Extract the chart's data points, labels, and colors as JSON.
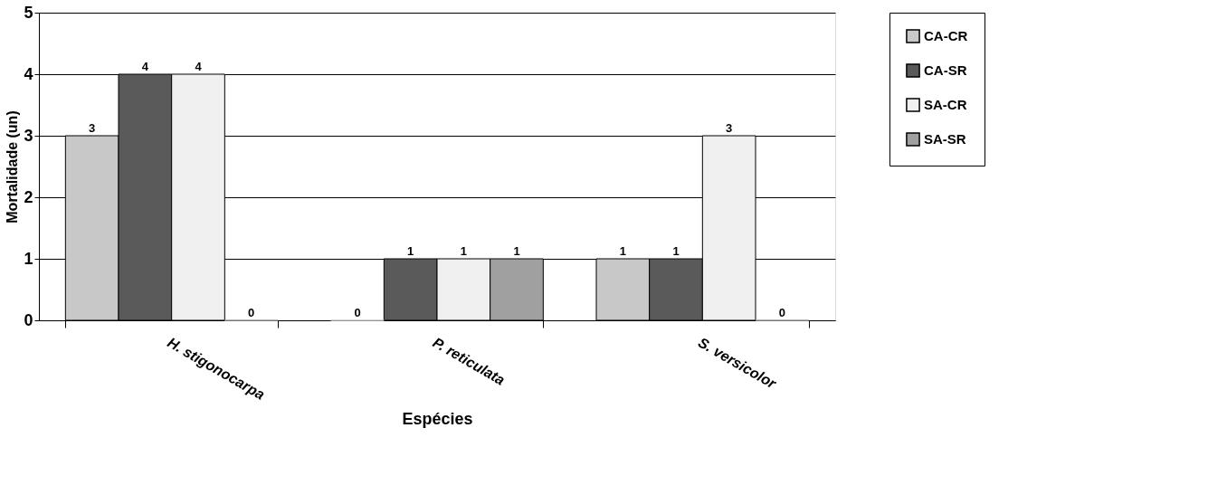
{
  "chart_data": {
    "type": "bar",
    "xlabel": "Espécies",
    "ylabel": "Mortalidade (un)",
    "categories": [
      "H. stigonocarpa",
      "P. reticulata",
      "S. versicolor"
    ],
    "series": [
      {
        "name": "CA-CR",
        "color": "#c8c8c8",
        "values": [
          3,
          0,
          1
        ]
      },
      {
        "name": "CA-SR",
        "color": "#5a5a5a",
        "values": [
          4,
          1,
          1
        ]
      },
      {
        "name": "SA-CR",
        "color": "#f0f0f0",
        "values": [
          4,
          1,
          3
        ]
      },
      {
        "name": "SA-SR",
        "color": "#a0a0a0",
        "values": [
          0,
          1,
          0
        ]
      }
    ],
    "ylim": [
      0,
      5
    ],
    "yticks": [
      0,
      1,
      2,
      3,
      4,
      5
    ],
    "grid": "y",
    "legend": "right",
    "data_labels": true
  }
}
